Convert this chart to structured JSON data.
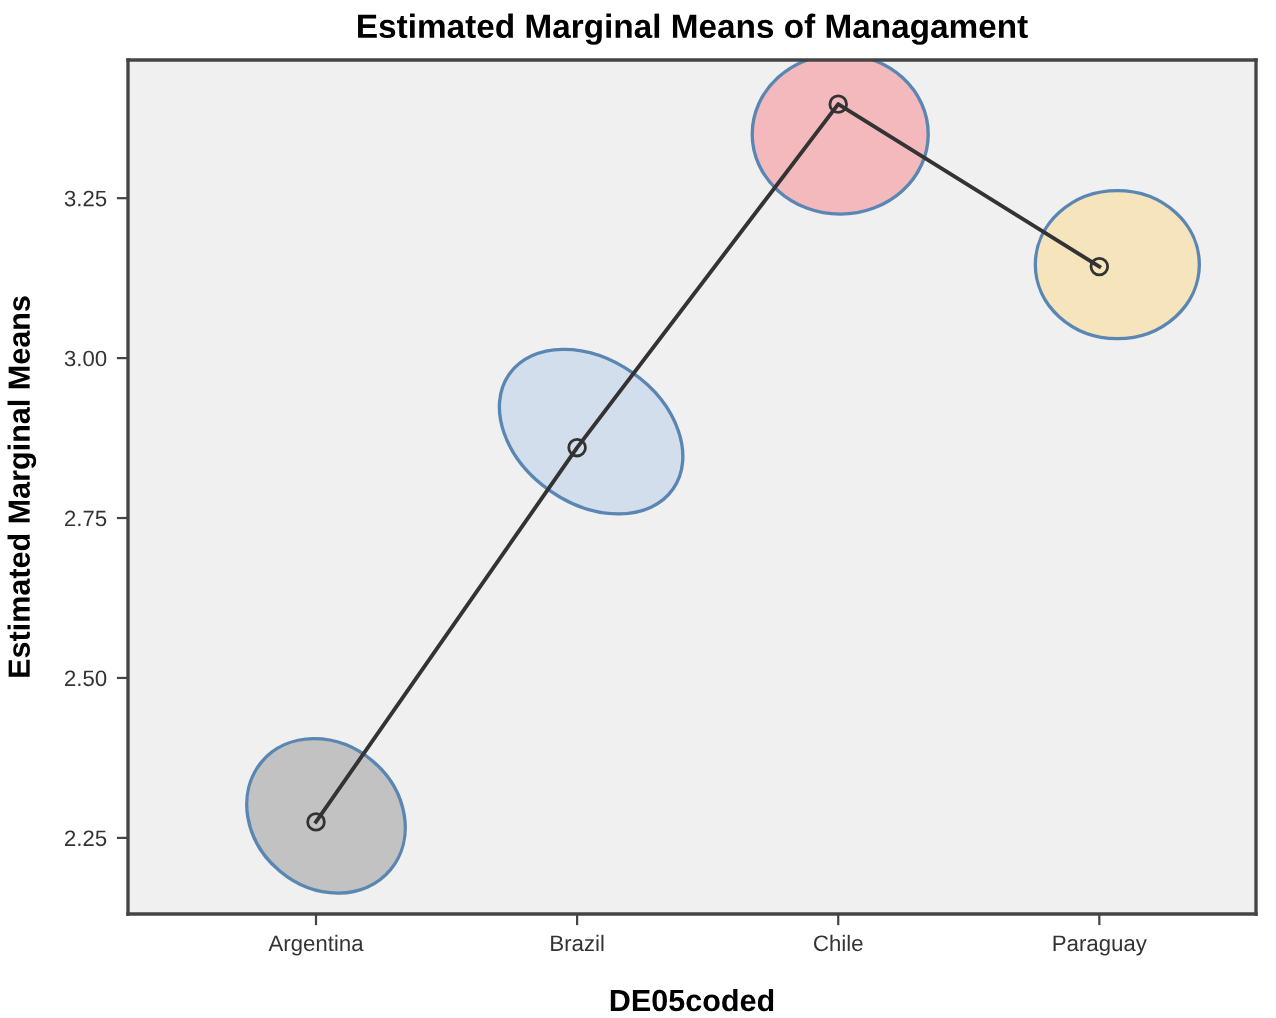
{
  "chart_data": {
    "type": "line",
    "title": "Estimated Marginal Means of Managament",
    "xlabel": "DE05coded",
    "ylabel": "Estimated Marginal Means",
    "categories": [
      "Argentina",
      "Brazil",
      "Chile",
      "Paraguay"
    ],
    "series": [
      {
        "color": "#333333",
        "values": [
          2.275,
          2.86,
          3.397,
          3.143
        ]
      }
    ],
    "ylim": [
      2.131,
      3.466
    ],
    "yticks": [
      {
        "value": 2.25,
        "label": "2.25"
      },
      {
        "value": 2.5,
        "label": "2.50"
      },
      {
        "value": 2.75,
        "label": "2.75"
      },
      {
        "value": 3.0,
        "label": "3.00"
      },
      {
        "value": 3.25,
        "label": "3.25"
      }
    ],
    "marker": "circle",
    "line_style": "solid",
    "grid": false
  }
}
